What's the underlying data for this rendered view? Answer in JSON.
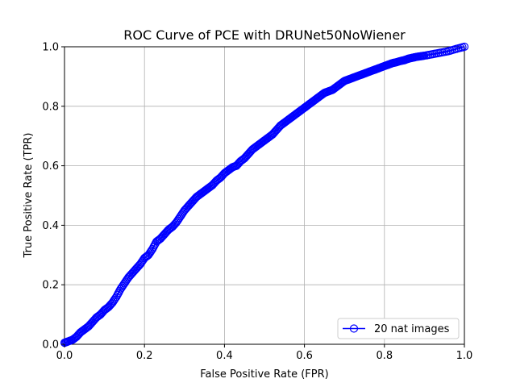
{
  "chart_data": {
    "type": "line",
    "title": "ROC Curve of PCE with DRUNet50NoWiener",
    "xlabel": "False Positive Rate (FPR)",
    "ylabel": "True Positive Rate (TPR)",
    "xlim": [
      0,
      1
    ],
    "ylim": [
      0,
      1
    ],
    "xticks": [
      "0.0",
      "0.2",
      "0.4",
      "0.6",
      "0.8",
      "1.0"
    ],
    "yticks": [
      "0.0",
      "0.2",
      "0.4",
      "0.6",
      "0.8",
      "1.0"
    ],
    "grid": true,
    "legend_position": "lower-right",
    "series": [
      {
        "name": "20 nat images",
        "color": "#0000ff",
        "marker": "open-circle",
        "x": [
          0.0,
          0.01,
          0.02,
          0.03,
          0.04,
          0.05,
          0.06,
          0.07,
          0.08,
          0.09,
          0.1,
          0.11,
          0.12,
          0.13,
          0.14,
          0.15,
          0.16,
          0.17,
          0.18,
          0.19,
          0.2,
          0.21,
          0.22,
          0.23,
          0.24,
          0.25,
          0.26,
          0.27,
          0.28,
          0.29,
          0.3,
          0.31,
          0.32,
          0.33,
          0.34,
          0.35,
          0.36,
          0.37,
          0.38,
          0.39,
          0.4,
          0.41,
          0.42,
          0.43,
          0.44,
          0.45,
          0.46,
          0.47,
          0.48,
          0.49,
          0.5,
          0.51,
          0.52,
          0.53,
          0.54,
          0.55,
          0.56,
          0.57,
          0.58,
          0.59,
          0.6,
          0.61,
          0.62,
          0.63,
          0.64,
          0.65,
          0.66,
          0.67,
          0.68,
          0.69,
          0.7,
          0.71,
          0.72,
          0.73,
          0.74,
          0.75,
          0.76,
          0.77,
          0.78,
          0.79,
          0.8,
          0.81,
          0.82,
          0.83,
          0.84,
          0.85,
          0.86,
          0.87,
          0.88,
          0.89,
          0.9,
          0.92,
          0.94,
          0.96,
          0.98,
          1.0
        ],
        "y": [
          0.005,
          0.01,
          0.015,
          0.025,
          0.04,
          0.05,
          0.06,
          0.075,
          0.09,
          0.1,
          0.115,
          0.125,
          0.14,
          0.16,
          0.185,
          0.205,
          0.225,
          0.24,
          0.255,
          0.27,
          0.29,
          0.3,
          0.32,
          0.345,
          0.355,
          0.37,
          0.385,
          0.395,
          0.41,
          0.43,
          0.45,
          0.465,
          0.48,
          0.495,
          0.505,
          0.515,
          0.525,
          0.535,
          0.55,
          0.56,
          0.575,
          0.585,
          0.595,
          0.6,
          0.615,
          0.625,
          0.64,
          0.655,
          0.665,
          0.675,
          0.685,
          0.695,
          0.705,
          0.72,
          0.735,
          0.745,
          0.755,
          0.765,
          0.775,
          0.785,
          0.795,
          0.805,
          0.815,
          0.825,
          0.835,
          0.845,
          0.85,
          0.855,
          0.865,
          0.875,
          0.885,
          0.89,
          0.895,
          0.9,
          0.905,
          0.91,
          0.915,
          0.92,
          0.925,
          0.93,
          0.935,
          0.94,
          0.945,
          0.948,
          0.952,
          0.955,
          0.96,
          0.963,
          0.966,
          0.968,
          0.97,
          0.975,
          0.98,
          0.985,
          0.993,
          1.0
        ]
      }
    ]
  }
}
